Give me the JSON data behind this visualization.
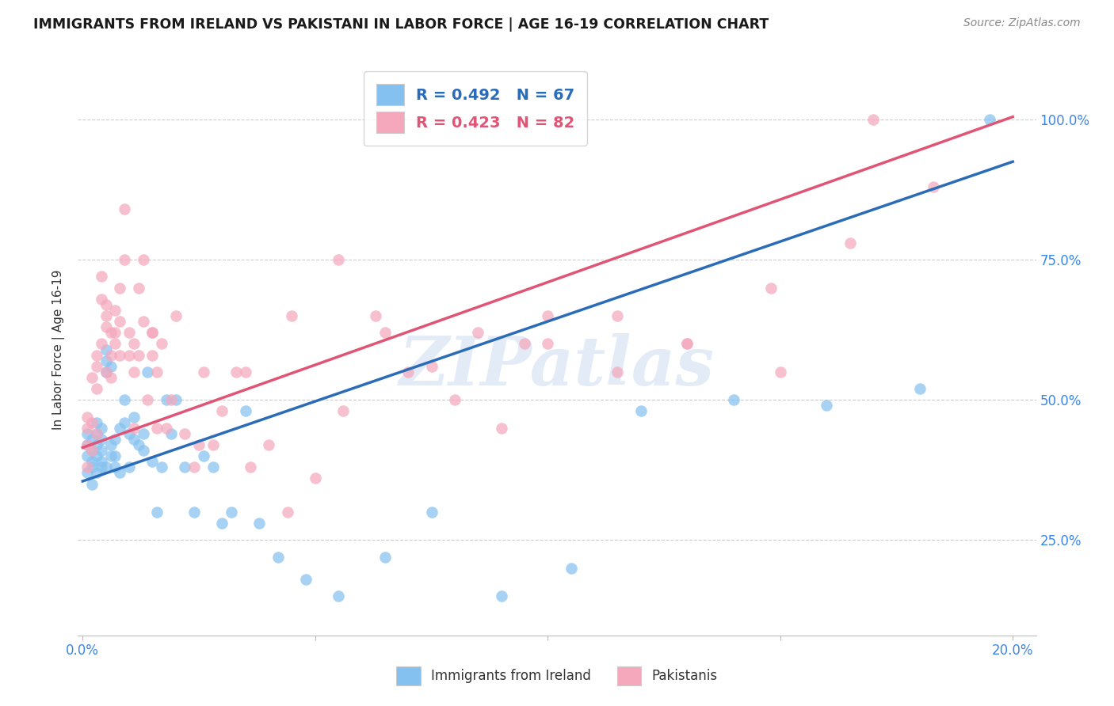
{
  "title": "IMMIGRANTS FROM IRELAND VS PAKISTANI IN LABOR FORCE | AGE 16-19 CORRELATION CHART",
  "source": "Source: ZipAtlas.com",
  "ylabel": "In Labor Force | Age 16-19",
  "xlim": [
    -0.001,
    0.205
  ],
  "ylim": [
    0.08,
    1.1
  ],
  "xtick_positions": [
    0.0,
    0.05,
    0.1,
    0.15,
    0.2
  ],
  "xticklabels": [
    "0.0%",
    "",
    "",
    "",
    "20.0%"
  ],
  "ytick_positions": [
    0.25,
    0.5,
    0.75,
    1.0
  ],
  "yticklabels_right": [
    "25.0%",
    "50.0%",
    "75.0%",
    "100.0%"
  ],
  "legend_label1": "R = 0.492   N = 67",
  "legend_label2": "R = 0.423   N = 82",
  "watermark": "ZIPatlas",
  "ireland_color": "#85C1F0",
  "pakistan_color": "#F5A8BC",
  "ireland_line_color": "#2B6CB8",
  "pakistan_line_color": "#E05575",
  "blue_line_x": [
    0.0,
    0.2
  ],
  "blue_line_y": [
    0.355,
    0.925
  ],
  "pink_line_x": [
    0.0,
    0.2
  ],
  "pink_line_y": [
    0.415,
    1.005
  ],
  "ireland_x": [
    0.001,
    0.001,
    0.001,
    0.001,
    0.002,
    0.002,
    0.002,
    0.002,
    0.002,
    0.003,
    0.003,
    0.003,
    0.003,
    0.003,
    0.004,
    0.004,
    0.004,
    0.004,
    0.004,
    0.005,
    0.005,
    0.005,
    0.005,
    0.006,
    0.006,
    0.006,
    0.007,
    0.007,
    0.007,
    0.008,
    0.008,
    0.009,
    0.009,
    0.01,
    0.01,
    0.011,
    0.011,
    0.012,
    0.013,
    0.013,
    0.014,
    0.015,
    0.016,
    0.017,
    0.018,
    0.019,
    0.02,
    0.022,
    0.024,
    0.026,
    0.028,
    0.03,
    0.032,
    0.035,
    0.038,
    0.042,
    0.048,
    0.055,
    0.065,
    0.075,
    0.09,
    0.105,
    0.12,
    0.14,
    0.16,
    0.18,
    0.195
  ],
  "ireland_y": [
    0.4,
    0.42,
    0.37,
    0.44,
    0.38,
    0.41,
    0.43,
    0.35,
    0.39,
    0.4,
    0.42,
    0.37,
    0.44,
    0.46,
    0.38,
    0.41,
    0.43,
    0.39,
    0.45,
    0.55,
    0.57,
    0.59,
    0.38,
    0.4,
    0.42,
    0.56,
    0.38,
    0.4,
    0.43,
    0.37,
    0.45,
    0.46,
    0.5,
    0.38,
    0.44,
    0.43,
    0.47,
    0.42,
    0.41,
    0.44,
    0.55,
    0.39,
    0.3,
    0.38,
    0.5,
    0.44,
    0.5,
    0.38,
    0.3,
    0.4,
    0.38,
    0.28,
    0.3,
    0.48,
    0.28,
    0.22,
    0.18,
    0.15,
    0.22,
    0.3,
    0.15,
    0.2,
    0.48,
    0.5,
    0.49,
    0.52,
    1.0
  ],
  "pakistan_x": [
    0.001,
    0.001,
    0.001,
    0.001,
    0.002,
    0.002,
    0.002,
    0.003,
    0.003,
    0.003,
    0.003,
    0.004,
    0.004,
    0.004,
    0.005,
    0.005,
    0.005,
    0.005,
    0.006,
    0.006,
    0.006,
    0.007,
    0.007,
    0.007,
    0.008,
    0.008,
    0.008,
    0.009,
    0.009,
    0.01,
    0.01,
    0.011,
    0.011,
    0.011,
    0.012,
    0.012,
    0.013,
    0.013,
    0.014,
    0.015,
    0.015,
    0.016,
    0.016,
    0.017,
    0.018,
    0.019,
    0.02,
    0.022,
    0.024,
    0.026,
    0.028,
    0.03,
    0.033,
    0.036,
    0.04,
    0.044,
    0.05,
    0.056,
    0.063,
    0.07,
    0.08,
    0.09,
    0.1,
    0.115,
    0.13,
    0.148,
    0.165,
    0.183,
    0.095,
    0.015,
    0.025,
    0.035,
    0.045,
    0.055,
    0.065,
    0.075,
    0.085,
    0.1,
    0.115,
    0.13,
    0.15,
    0.17
  ],
  "pakistan_y": [
    0.42,
    0.38,
    0.45,
    0.47,
    0.41,
    0.46,
    0.54,
    0.44,
    0.52,
    0.58,
    0.56,
    0.68,
    0.72,
    0.6,
    0.63,
    0.67,
    0.55,
    0.65,
    0.58,
    0.62,
    0.54,
    0.6,
    0.62,
    0.66,
    0.58,
    0.7,
    0.64,
    0.75,
    0.84,
    0.58,
    0.62,
    0.45,
    0.55,
    0.6,
    0.58,
    0.7,
    0.64,
    0.75,
    0.5,
    0.58,
    0.62,
    0.45,
    0.55,
    0.6,
    0.45,
    0.5,
    0.65,
    0.44,
    0.38,
    0.55,
    0.42,
    0.48,
    0.55,
    0.38,
    0.42,
    0.3,
    0.36,
    0.48,
    0.65,
    0.55,
    0.5,
    0.45,
    0.65,
    0.55,
    0.6,
    0.7,
    0.78,
    0.88,
    0.6,
    0.62,
    0.42,
    0.55,
    0.65,
    0.75,
    0.62,
    0.56,
    0.62,
    0.6,
    0.65,
    0.6,
    0.55,
    1.0
  ]
}
